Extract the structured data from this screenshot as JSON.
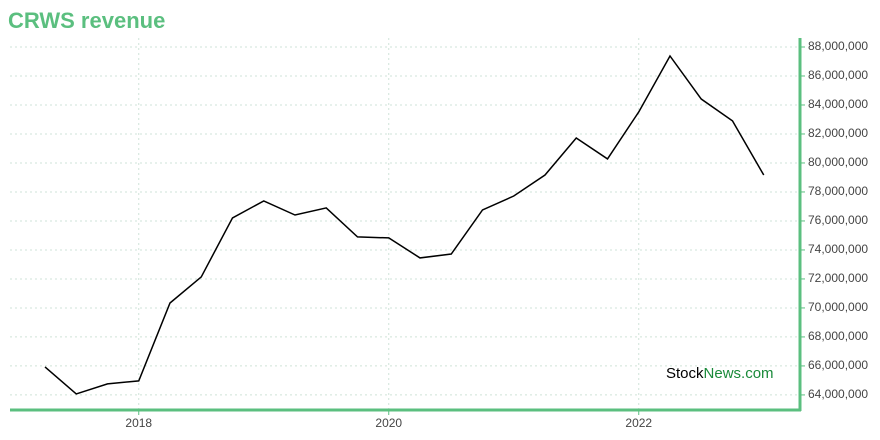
{
  "chart_data": {
    "type": "line",
    "title": "CRWS revenue",
    "x": [
      2017.25,
      2017.5,
      2017.75,
      2018,
      2018.25,
      2018.5,
      2018.75,
      2019,
      2019.25,
      2019.5,
      2019.75,
      2020,
      2020.25,
      2020.5,
      2020.75,
      2021,
      2021.25,
      2021.5,
      2021.75,
      2022,
      2022.25,
      2022.5,
      2022.75,
      2023
    ],
    "series": [
      {
        "name": "CRWS revenue",
        "color": "#000000",
        "values": [
          65930000,
          64070000,
          64760000,
          64970000,
          70340000,
          72140000,
          76210000,
          77380000,
          76410000,
          76900000,
          74900000,
          74830000,
          73450000,
          73720000,
          76760000,
          77720000,
          79170000,
          81720000,
          80280000,
          83520000,
          87380000,
          84410000,
          82900000,
          79170000
        ]
      }
    ],
    "xlim": [
      2016.97,
      2023.29
    ],
    "xticks": [
      2018,
      2020,
      2022
    ],
    "ylim": [
      62960000,
      88620000
    ],
    "yticks": [
      {
        "value": 64000000,
        "label": "64,000,000"
      },
      {
        "value": 66000000,
        "label": "66,000,000"
      },
      {
        "value": 68000000,
        "label": "68,000,000"
      },
      {
        "value": 70000000,
        "label": "70,000,000"
      },
      {
        "value": 72000000,
        "label": "72,000,000"
      },
      {
        "value": 74000000,
        "label": "74,000,000"
      },
      {
        "value": 76000000,
        "label": "76,000,000"
      },
      {
        "value": 78000000,
        "label": "78,000,000"
      },
      {
        "value": 80000000,
        "label": "80,000,000"
      },
      {
        "value": 82000000,
        "label": "82,000,000"
      },
      {
        "value": 84000000,
        "label": "84,000,000"
      },
      {
        "value": 86000000,
        "label": "86,000,000"
      },
      {
        "value": 88000000,
        "label": "88,000,000"
      }
    ],
    "grid": true,
    "axis_color": "#5bbf7f"
  },
  "watermark": [
    "Stock",
    "News.com"
  ]
}
